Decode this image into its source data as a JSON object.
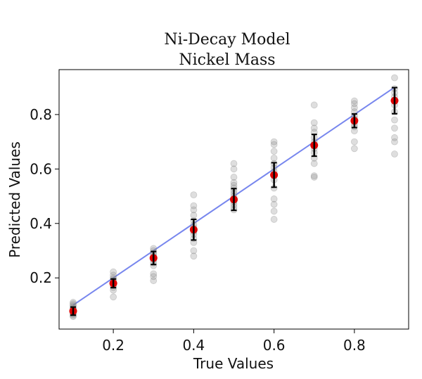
{
  "chart_data": {
    "type": "scatter",
    "title": [
      "Ni-Decay Model",
      "Nickel Mass"
    ],
    "xlabel": "True Values",
    "ylabel": "Predicted Values",
    "xlim": [
      0.065,
      0.935
    ],
    "ylim": [
      0.012,
      0.965
    ],
    "xticks": [
      0.2,
      0.4,
      0.6,
      0.8
    ],
    "xtick_labels": [
      "0.2",
      "0.4",
      "0.6",
      "0.8"
    ],
    "yticks": [
      0.2,
      0.4,
      0.6,
      0.8
    ],
    "ytick_labels": [
      "0.2",
      "0.4",
      "0.6",
      "0.8"
    ],
    "grid": false,
    "legend": "none",
    "identity_line": {
      "x": [
        0.1,
        0.9
      ],
      "y": [
        0.1,
        0.9
      ],
      "color": "#4a5ee8"
    },
    "colors": {
      "samples": "#888888",
      "mean": "#e00000",
      "errorbar": "#000000"
    },
    "groups": [
      {
        "x": 0.1,
        "mean": 0.078,
        "err": 0.015,
        "samples": [
          0.058,
          0.062,
          0.066,
          0.07,
          0.074,
          0.078,
          0.082,
          0.086,
          0.09,
          0.095,
          0.1,
          0.105,
          0.11
        ]
      },
      {
        "x": 0.2,
        "mean": 0.18,
        "err": 0.016,
        "samples": [
          0.13,
          0.155,
          0.165,
          0.172,
          0.178,
          0.183,
          0.188,
          0.195,
          0.2,
          0.21,
          0.222
        ]
      },
      {
        "x": 0.3,
        "mean": 0.273,
        "err": 0.024,
        "samples": [
          0.19,
          0.205,
          0.215,
          0.245,
          0.255,
          0.265,
          0.272,
          0.278,
          0.285,
          0.292,
          0.3,
          0.308
        ]
      },
      {
        "x": 0.4,
        "mean": 0.377,
        "err": 0.038,
        "samples": [
          0.28,
          0.3,
          0.33,
          0.345,
          0.36,
          0.37,
          0.385,
          0.395,
          0.41,
          0.43,
          0.45,
          0.465,
          0.505
        ]
      },
      {
        "x": 0.5,
        "mean": 0.488,
        "err": 0.04,
        "samples": [
          0.45,
          0.46,
          0.47,
          0.48,
          0.49,
          0.5,
          0.51,
          0.52,
          0.53,
          0.54,
          0.55,
          0.57,
          0.6,
          0.62
        ]
      },
      {
        "x": 0.6,
        "mean": 0.578,
        "err": 0.045,
        "samples": [
          0.415,
          0.445,
          0.47,
          0.49,
          0.53,
          0.56,
          0.575,
          0.59,
          0.605,
          0.62,
          0.64,
          0.665,
          0.69,
          0.7
        ]
      },
      {
        "x": 0.7,
        "mean": 0.687,
        "err": 0.04,
        "samples": [
          0.57,
          0.575,
          0.62,
          0.64,
          0.66,
          0.675,
          0.69,
          0.7,
          0.715,
          0.735,
          0.75,
          0.77,
          0.835
        ]
      },
      {
        "x": 0.8,
        "mean": 0.777,
        "err": 0.025,
        "samples": [
          0.675,
          0.7,
          0.74,
          0.755,
          0.765,
          0.775,
          0.785,
          0.795,
          0.81,
          0.825,
          0.84,
          0.85
        ]
      },
      {
        "x": 0.9,
        "mean": 0.851,
        "err": 0.048,
        "samples": [
          0.655,
          0.7,
          0.715,
          0.75,
          0.78,
          0.81,
          0.835,
          0.85,
          0.865,
          0.88,
          0.895,
          0.935
        ]
      }
    ]
  }
}
